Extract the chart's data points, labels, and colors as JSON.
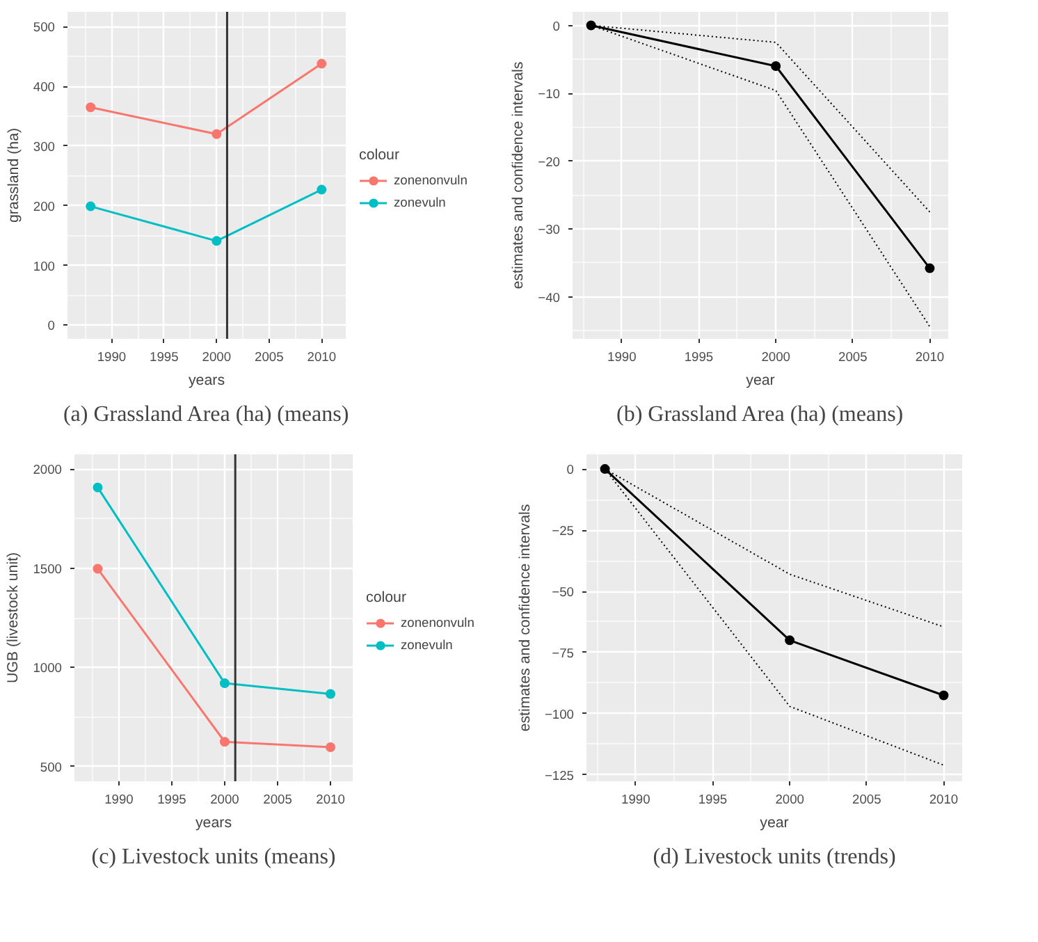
{
  "chart_data": [
    {
      "type": "line",
      "title": "(a) Grassland Area (ha) (means)",
      "xlabel": "years",
      "ylabel": "grassland (ha)",
      "legend_title": "colour",
      "legend": "right",
      "marker": "circle",
      "grid": true,
      "x": [
        1988,
        2000,
        2010
      ],
      "xlim": [
        1985.8,
        2012.3
      ],
      "xticks": [
        1990,
        1995,
        2000,
        2005,
        2010
      ],
      "ylim": [
        -23,
        525
      ],
      "yticks": [
        0,
        100,
        200,
        300,
        400,
        500
      ],
      "series": [
        {
          "name": "zonenonvuln",
          "color": "#f8766d",
          "values": [
            365,
            320,
            438
          ]
        },
        {
          "name": "zonevuln",
          "color": "#00bfc4",
          "values": [
            199,
            141,
            227
          ]
        }
      ],
      "ref_lines": [
        {
          "axis": "x",
          "value": 2001,
          "color": "#333333"
        }
      ]
    },
    {
      "type": "line",
      "title": "(b) Grassland Area (ha) (means)",
      "xlabel": "year",
      "ylabel": "estimates and confidence intervals",
      "marker": "circle",
      "grid": true,
      "x": [
        1988,
        2000,
        2010
      ],
      "xlim": [
        1986.8,
        2011.2
      ],
      "xticks": [
        1990,
        1995,
        2000,
        2005,
        2010
      ],
      "ylim": [
        -46.2,
        2
      ],
      "yticks": [
        0,
        {
          "value": -10,
          "label": "−10"
        },
        {
          "value": -20,
          "label": "−20"
        },
        {
          "value": -30,
          "label": "−30"
        },
        {
          "value": -40,
          "label": "−40"
        }
      ],
      "series": [
        {
          "color": "#000000",
          "values": [
            0,
            -6,
            -35.8
          ]
        },
        {
          "color": "#000000",
          "values": [
            0,
            -9.6,
            -44.4
          ],
          "line_style": "dotted",
          "marker": "none"
        },
        {
          "color": "#000000",
          "values": [
            0,
            -2.5,
            -27.5
          ],
          "line_style": "dotted",
          "marker": "none"
        }
      ]
    },
    {
      "type": "line",
      "title": "(c) Livestock units (means)",
      "xlabel": "years",
      "ylabel": "UGB (livestock unit)",
      "legend_title": "colour",
      "legend": "right",
      "marker": "circle",
      "grid": true,
      "x": [
        1988,
        2000,
        2010
      ],
      "xlim": [
        1985.8,
        2012.1
      ],
      "xticks": [
        1990,
        1995,
        2000,
        2005,
        2010
      ],
      "ylim": [
        426,
        2074
      ],
      "yticks": [
        500,
        1000,
        1500,
        2000
      ],
      "series": [
        {
          "name": "zonenonvuln",
          "color": "#f8766d",
          "values": [
            1497,
            625,
            598
          ]
        },
        {
          "name": "zonevuln",
          "color": "#00bfc4",
          "values": [
            1907,
            920,
            866
          ]
        }
      ],
      "ref_lines": [
        {
          "axis": "x",
          "value": 2001,
          "color": "#333333"
        }
      ]
    },
    {
      "type": "line",
      "title": "(d) Livestock units (trends)",
      "xlabel": "year",
      "ylabel": "estimates and confidence intervals",
      "marker": "circle",
      "grid": true,
      "x": [
        1988,
        2000,
        2010
      ],
      "xlim": [
        1986.8,
        2011.2
      ],
      "xticks": [
        1990,
        1995,
        2000,
        2005,
        2010
      ],
      "ylim": [
        -127.6,
        6
      ],
      "yticks": [
        0,
        {
          "value": -25,
          "label": "−25"
        },
        {
          "value": -50,
          "label": "−50"
        },
        {
          "value": -75,
          "label": "−75"
        },
        {
          "value": -100,
          "label": "−100"
        },
        {
          "value": -125,
          "label": "−125"
        }
      ],
      "series": [
        {
          "color": "#000000",
          "values": [
            0,
            -70,
            -92.5
          ]
        },
        {
          "color": "#000000",
          "values": [
            0,
            -97,
            -121
          ],
          "line_style": "dotted",
          "marker": "none"
        },
        {
          "color": "#000000",
          "values": [
            0,
            -43,
            -64.5
          ],
          "line_style": "dotted",
          "marker": "none"
        }
      ]
    }
  ]
}
